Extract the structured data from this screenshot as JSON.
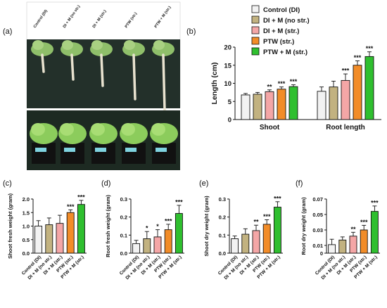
{
  "colors": {
    "Control (DI)": "#f2f2f2",
    "DI + M (no str.)": "#c2b280",
    "DI + M (str.)": "#f4a6a6",
    "PTW (str.)": "#f28c28",
    "PTW + M (str.)": "#2fbf2f"
  },
  "panel_a": {
    "label": "(a)",
    "photo_labels": [
      "Control (DI)",
      "DI + M (no str.)",
      "DI + M (str.)",
      "PTW (str.)",
      "PTW + M (str.)"
    ]
  },
  "chart_data": [
    {
      "id": "b",
      "label": "(b)",
      "type": "bar",
      "categories": [
        "Shoot",
        "Root length"
      ],
      "series": [
        {
          "name": "Control (DI)",
          "values": [
            6.8,
            7.8
          ],
          "errors": [
            0.4,
            1.2
          ],
          "stars": [
            "",
            ""
          ]
        },
        {
          "name": "DI + M (no str.)",
          "values": [
            7.0,
            9.0
          ],
          "errors": [
            0.5,
            1.6
          ],
          "stars": [
            "",
            ""
          ]
        },
        {
          "name": "DI + M (str.)",
          "values": [
            7.7,
            10.8
          ],
          "errors": [
            0.5,
            1.8
          ],
          "stars": [
            "**",
            "***"
          ]
        },
        {
          "name": "PTW (str.)",
          "values": [
            8.4,
            15.0
          ],
          "errors": [
            0.6,
            1.2
          ],
          "stars": [
            "***",
            "***"
          ]
        },
        {
          "name": "PTW + M (str.)",
          "values": [
            9.1,
            17.4
          ],
          "errors": [
            0.5,
            1.3
          ],
          "stars": [
            "***",
            "***"
          ]
        }
      ],
      "ylabel": "Length (cm)",
      "ylim": [
        0,
        20
      ],
      "yticks": [
        0,
        5,
        10,
        15,
        20
      ],
      "legend": "top-left"
    },
    {
      "id": "c",
      "label": "(c)",
      "type": "bar",
      "categories": [
        "Control (DI)",
        "DI + M (no str.)",
        "DI + M (str.)",
        "PTW (str.)",
        "PTW + M (str.)"
      ],
      "values": [
        1.0,
        1.05,
        1.1,
        1.5,
        1.8
      ],
      "errors": [
        0.2,
        0.25,
        0.3,
        0.1,
        0.15
      ],
      "stars": [
        "",
        "",
        "",
        "***",
        "***"
      ],
      "ylabel": "Shoot fresh weight (gram)",
      "ylim": [
        0,
        2.0
      ],
      "yticks": [
        0,
        0.5,
        1.0,
        1.5,
        2.0
      ],
      "ytick_labels": [
        "0.0",
        "0.5",
        "1.0",
        "1.5",
        "2.0"
      ]
    },
    {
      "id": "d",
      "label": "(d)",
      "type": "bar",
      "categories": [
        "Control (DI)",
        "DI + M (no str.)",
        "DI + M (str.)",
        "PTW (str.)",
        "PTW + M (str.)"
      ],
      "values": [
        0.053,
        0.08,
        0.09,
        0.13,
        0.22
      ],
      "errors": [
        0.018,
        0.04,
        0.04,
        0.03,
        0.045
      ],
      "stars": [
        "",
        "*",
        "*",
        "***",
        "***"
      ],
      "ylabel": "Root fresh weight (gram)",
      "ylim": [
        0,
        0.3
      ],
      "yticks": [
        0,
        0.1,
        0.2,
        0.3
      ],
      "ytick_labels": [
        "0.0",
        "0.1",
        "0.2",
        "0.3"
      ]
    },
    {
      "id": "e",
      "label": "(e)",
      "type": "bar",
      "categories": [
        "Control (DI)",
        "DI + M (no str.)",
        "DI + M (str.)",
        "PTW (str.)",
        "PTW + M (str.)"
      ],
      "values": [
        0.08,
        0.105,
        0.125,
        0.16,
        0.255
      ],
      "errors": [
        0.015,
        0.03,
        0.03,
        0.025,
        0.03
      ],
      "stars": [
        "",
        "",
        "**",
        "***",
        "***"
      ],
      "ylabel": "Shoot dry weight (gram)",
      "ylim": [
        0,
        0.3
      ],
      "yticks": [
        0,
        0.1,
        0.2,
        0.3
      ],
      "ytick_labels": [
        "0.0",
        "0.1",
        "0.2",
        "0.3"
      ]
    },
    {
      "id": "f",
      "label": "(f)",
      "type": "bar",
      "categories": [
        "Control (DI)",
        "DI + M (no str.)",
        "DI + M (str.)",
        "PTW (str.)",
        "PTW + M (str.)"
      ],
      "values": [
        0.011,
        0.017,
        0.022,
        0.03,
        0.054
      ],
      "errors": [
        0.007,
        0.004,
        0.005,
        0.006,
        0.007
      ],
      "stars": [
        "",
        "",
        "**",
        "***",
        "***"
      ],
      "ylabel": "Root dry weight (gram)",
      "ylim": [
        0,
        0.07
      ],
      "yticks": [
        0,
        0.01,
        0.03,
        0.05,
        0.07
      ],
      "ytick_labels": [
        "0",
        "0.01",
        "0.03",
        "0.05",
        "0.07"
      ]
    }
  ]
}
